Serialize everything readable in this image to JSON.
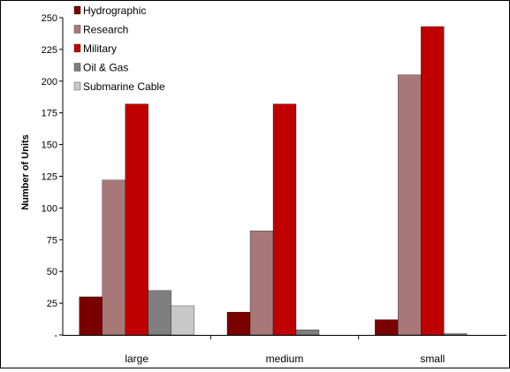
{
  "chart_data": {
    "type": "bar",
    "title": "",
    "xlabel": "",
    "ylabel": "Number of Units",
    "ylim": [
      0,
      250
    ],
    "yticks": [
      0,
      25,
      50,
      75,
      100,
      125,
      150,
      175,
      200,
      225,
      250
    ],
    "ytick_labels": [
      "-",
      "25",
      "50",
      "75",
      "100",
      "125",
      "150",
      "175",
      "200",
      "225",
      "250"
    ],
    "categories": [
      "large",
      "medium",
      "small"
    ],
    "grid": false,
    "legend_position": "top-left",
    "series": [
      {
        "name": "Hydrographic",
        "color": "#7a0000",
        "values": [
          30,
          18,
          12
        ]
      },
      {
        "name": "Research",
        "color": "#a87878",
        "values": [
          122,
          82,
          205
        ]
      },
      {
        "name": "Military",
        "color": "#c00000",
        "values": [
          182,
          182,
          243
        ]
      },
      {
        "name": "Oil & Gas",
        "color": "#7f7f7f",
        "values": [
          35,
          4,
          1
        ]
      },
      {
        "name": "Submarine Cable",
        "color": "#c8c8c8",
        "values": [
          23,
          0,
          0
        ]
      }
    ]
  }
}
